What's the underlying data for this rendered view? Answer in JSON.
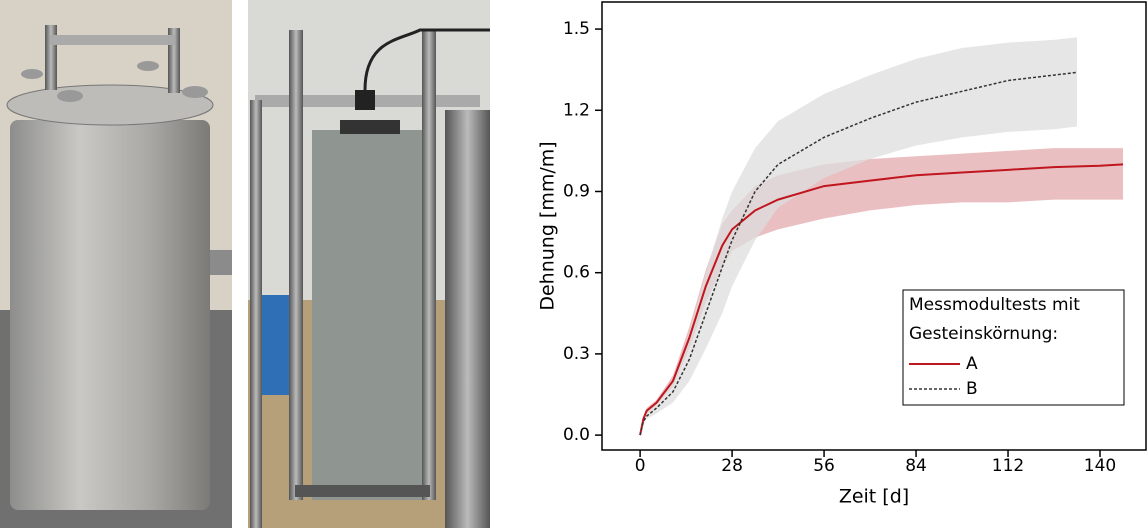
{
  "chart_data": {
    "type": "line",
    "x_label": "Zeit [d]",
    "y_label": "Dehnung [mm/m]",
    "xlim": [
      -11.6,
      154
    ],
    "ylim": [
      -0.055,
      1.6
    ],
    "xticks": [
      0,
      28,
      56,
      84,
      112,
      140
    ],
    "yticks": [
      {
        "value": 0,
        "label": "0.0"
      },
      0.3,
      0.6,
      0.9,
      1.2,
      1.5
    ],
    "legend_title": [
      "Messmodultests mit",
      "Gesteinskörnung:"
    ],
    "series": [
      {
        "name": "A",
        "color": "#c0161e",
        "band_color": "#e3a9ae",
        "dash": false,
        "x": [
          0,
          1,
          2,
          5,
          10,
          15,
          20,
          25,
          28,
          35,
          42,
          56,
          70,
          84,
          98,
          112,
          126,
          140,
          147
        ],
        "values": [
          0,
          0.06,
          0.09,
          0.12,
          0.2,
          0.36,
          0.55,
          0.7,
          0.76,
          0.83,
          0.87,
          0.92,
          0.94,
          0.96,
          0.97,
          0.98,
          0.99,
          0.995,
          1.0
        ],
        "lower": [
          0,
          0.05,
          0.08,
          0.11,
          0.18,
          0.32,
          0.49,
          0.62,
          0.68,
          0.73,
          0.76,
          0.8,
          0.83,
          0.85,
          0.86,
          0.86,
          0.87,
          0.87,
          0.87
        ],
        "upper": [
          0,
          0.07,
          0.1,
          0.13,
          0.22,
          0.4,
          0.61,
          0.78,
          0.83,
          0.92,
          0.96,
          1.0,
          1.02,
          1.03,
          1.04,
          1.05,
          1.06,
          1.06,
          1.06
        ]
      },
      {
        "name": "B",
        "color": "#333333",
        "band_color": "#dedede",
        "dash": true,
        "x": [
          0,
          1,
          2,
          5,
          10,
          15,
          20,
          25,
          28,
          35,
          42,
          56,
          70,
          84,
          98,
          112,
          126,
          133
        ],
        "values": [
          0,
          0.05,
          0.07,
          0.1,
          0.16,
          0.28,
          0.45,
          0.62,
          0.72,
          0.9,
          1.0,
          1.1,
          1.17,
          1.23,
          1.27,
          1.31,
          1.33,
          1.34
        ],
        "lower": [
          0,
          0.04,
          0.06,
          0.08,
          0.12,
          0.2,
          0.32,
          0.45,
          0.55,
          0.72,
          0.84,
          0.95,
          1.02,
          1.07,
          1.1,
          1.12,
          1.13,
          1.14
        ],
        "upper": [
          0,
          0.06,
          0.08,
          0.12,
          0.2,
          0.38,
          0.6,
          0.8,
          0.9,
          1.06,
          1.16,
          1.26,
          1.33,
          1.39,
          1.43,
          1.45,
          1.46,
          1.47
        ]
      }
    ]
  }
}
